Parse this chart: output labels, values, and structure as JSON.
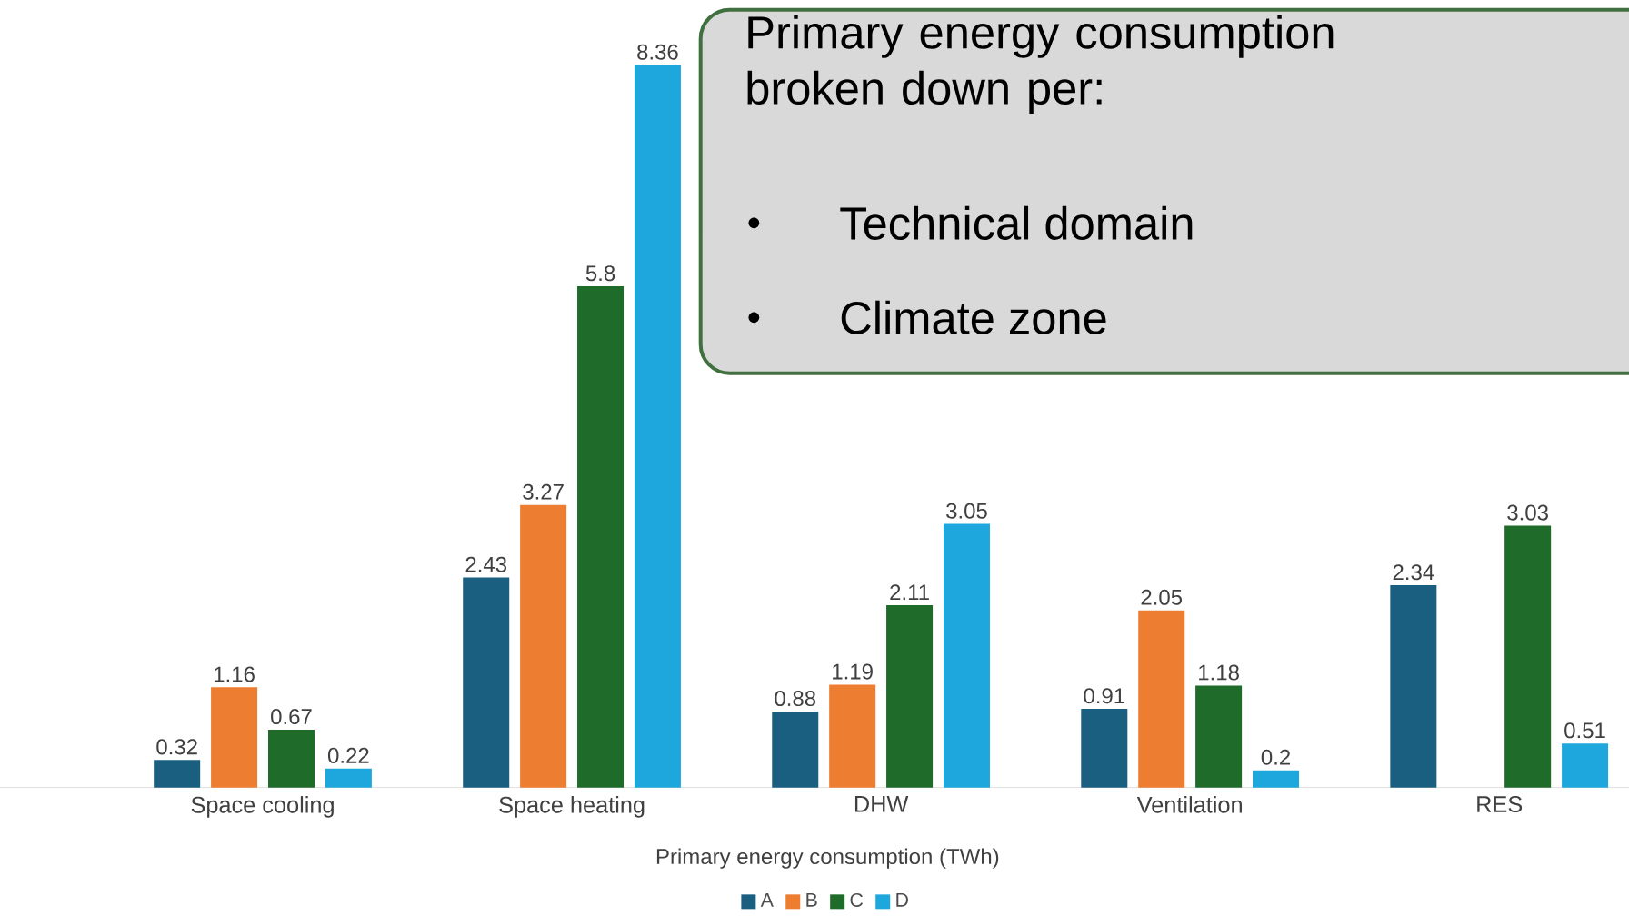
{
  "chart_data": {
    "type": "bar",
    "categories": [
      "Space cooling",
      "Space heating",
      "DHW",
      "Ventilation",
      "RES"
    ],
    "series": [
      {
        "name": "A",
        "color": "#1a5e80",
        "values": [
          0.32,
          2.43,
          0.88,
          0.91,
          2.34
        ]
      },
      {
        "name": "B",
        "color": "#ed7d31",
        "values": [
          1.16,
          3.27,
          1.19,
          2.05,
          null
        ]
      },
      {
        "name": "C",
        "color": "#1e6b2a",
        "values": [
          0.67,
          5.8,
          2.11,
          1.18,
          3.03
        ]
      },
      {
        "name": "D",
        "color": "#1ea7dc",
        "values": [
          0.22,
          8.36,
          3.05,
          0.2,
          0.51
        ]
      }
    ],
    "data_labels": true,
    "xlabel": "Primary energy consumption (TWh)",
    "legend": "bottom",
    "annotations": [
      "Primary energy consumption broken down per:",
      "Technical domain",
      "Climate zone"
    ]
  }
}
